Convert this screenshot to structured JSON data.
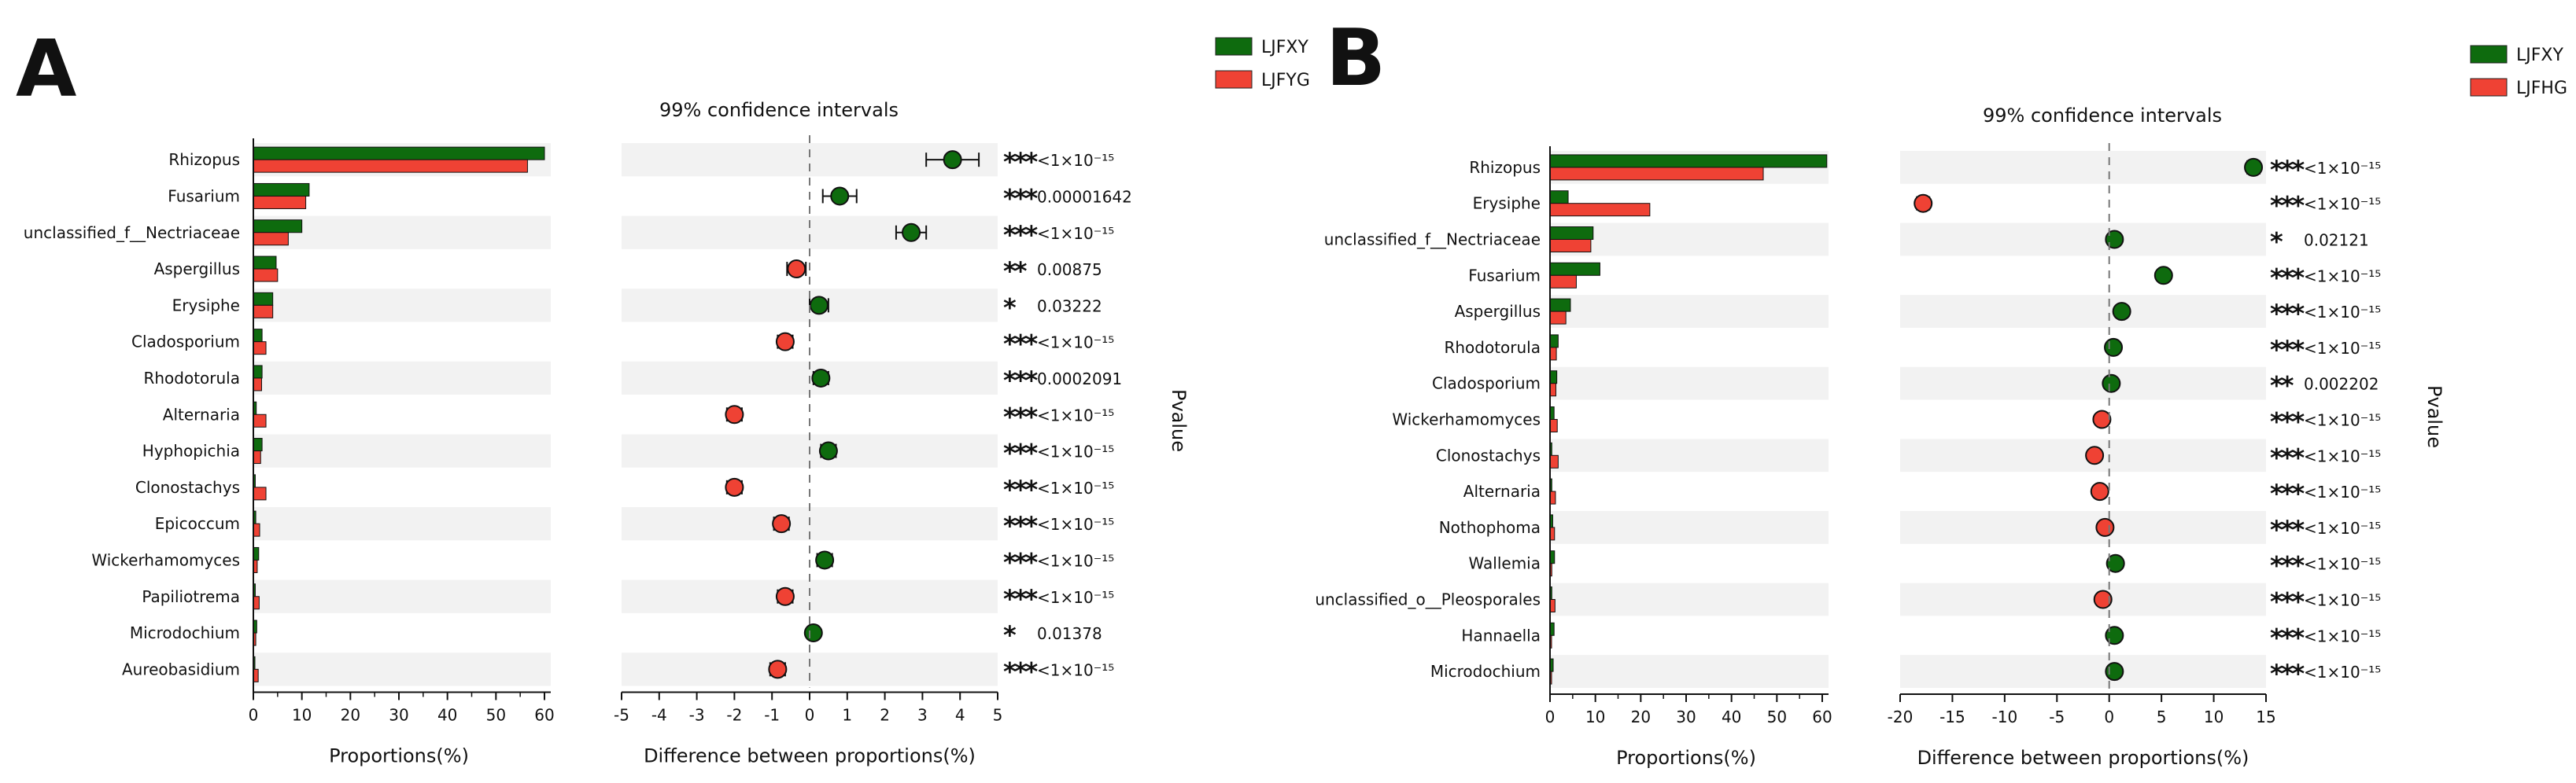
{
  "colors": {
    "green": "#0e6b0e",
    "red": "#ef4234",
    "stars": "#f08a80",
    "band": "#f2f2f2"
  },
  "chart_data": [
    {
      "type": "bar",
      "panel_letter": "A",
      "legend": [
        "LJFXY",
        "LJFYG"
      ],
      "ci_title": "99% confidence intervals",
      "xlabel_left": "Proportions(%)",
      "xlabel_right": "Difference between proportions(%)",
      "pvalue_label": "Pvalue",
      "prop_xlim": [
        0,
        60
      ],
      "prop_ticks": [
        0,
        10,
        20,
        30,
        40,
        50,
        60
      ],
      "diff_xlim": [
        -5,
        5
      ],
      "diff_ticks": [
        -5,
        -4,
        -3,
        -2,
        -1,
        0,
        1,
        2,
        3,
        4,
        5
      ],
      "categories": [
        "Rhizopus",
        "Fusarium",
        "unclassified_f__Nectriaceae",
        "Aspergillus",
        "Erysiphe",
        "Cladosporium",
        "Rhodotorula",
        "Alternaria",
        "Hyphopichia",
        "Clonostachys",
        "Epicoccum",
        "Wickerhamomyces",
        "Papiliotrema",
        "Microdochium",
        "Aureobasidium"
      ],
      "series": [
        {
          "name": "LJFXY",
          "values": [
            60,
            11.5,
            10,
            4.7,
            4.0,
            1.8,
            1.8,
            0.6,
            1.8,
            0.4,
            0.5,
            1.1,
            0.4,
            0.7,
            0.1
          ]
        },
        {
          "name": "LJFYG",
          "values": [
            56.5,
            10.8,
            7.2,
            5.0,
            4.0,
            2.6,
            1.7,
            2.6,
            1.5,
            2.6,
            1.3,
            0.8,
            1.2,
            0.5,
            1.0
          ]
        }
      ],
      "diff": [
        3.8,
        0.8,
        2.7,
        -0.35,
        0.25,
        -0.65,
        0.3,
        -2.0,
        0.5,
        -2.0,
        -0.75,
        0.4,
        -0.65,
        0.1,
        -0.85
      ],
      "ci_low": [
        3.1,
        0.35,
        2.3,
        -0.6,
        0.0,
        -0.85,
        0.1,
        -2.2,
        0.3,
        -2.2,
        -0.95,
        0.2,
        -0.85,
        -0.05,
        -1.05
      ],
      "ci_high": [
        4.5,
        1.25,
        3.1,
        -0.1,
        0.5,
        -0.45,
        0.5,
        -1.8,
        0.7,
        -1.8,
        -0.55,
        0.6,
        -0.45,
        0.25,
        -0.65
      ],
      "sig": [
        "***",
        "***",
        "***",
        "**",
        "*",
        "***",
        "***",
        "***",
        "***",
        "***",
        "***",
        "***",
        "***",
        "*",
        "***"
      ],
      "pvalues": [
        "<1×10⁻¹⁵",
        "0.00001642",
        "<1×10⁻¹⁵",
        "0.00875",
        "0.03222",
        "<1×10⁻¹⁵",
        "0.0002091",
        "<1×10⁻¹⁵",
        "<1×10⁻¹⁵",
        "<1×10⁻¹⁵",
        "<1×10⁻¹⁵",
        "<1×10⁻¹⁵",
        "<1×10⁻¹⁵",
        "0.01378",
        "<1×10⁻¹⁵"
      ]
    },
    {
      "type": "bar",
      "panel_letter": "B",
      "legend": [
        "LJFXY",
        "LJFHG"
      ],
      "ci_title": "99% confidence intervals",
      "xlabel_left": "Proportions(%)",
      "xlabel_right": "Difference between proportions(%)",
      "pvalue_label": "Pvalue",
      "prop_xlim": [
        0,
        60
      ],
      "prop_ticks": [
        0,
        10,
        20,
        30,
        40,
        50,
        60
      ],
      "diff_xlim": [
        -20,
        15
      ],
      "diff_ticks": [
        -20,
        -15,
        -10,
        -5,
        0,
        5,
        10,
        15
      ],
      "categories": [
        "Rhizopus",
        "Erysiphe",
        "unclassified_f__Nectriaceae",
        "Fusarium",
        "Aspergillus",
        "Rhodotorula",
        "Cladosporium",
        "Wickerhamomyces",
        "Clonostachys",
        "Alternaria",
        "Nothophoma",
        "Wallemia",
        "unclassified_o__Pleosporales",
        "Hannaella",
        "Microdochium"
      ],
      "series": [
        {
          "name": "LJFXY",
          "values": [
            61,
            4.0,
            9.5,
            11.0,
            4.5,
            1.8,
            1.5,
            0.9,
            0.4,
            0.4,
            0.6,
            1.0,
            0.4,
            0.9,
            0.7
          ]
        },
        {
          "name": "LJFHG",
          "values": [
            47,
            22,
            9.0,
            5.8,
            3.5,
            1.4,
            1.3,
            1.6,
            1.8,
            1.2,
            1.0,
            0.4,
            1.1,
            0.3,
            0.2
          ]
        }
      ],
      "diff": [
        13.8,
        -17.8,
        0.5,
        5.2,
        1.2,
        0.4,
        0.2,
        -0.7,
        -1.4,
        -0.9,
        -0.4,
        0.6,
        -0.6,
        0.5,
        0.5
      ],
      "ci_low": [
        13.2,
        -18.4,
        0.1,
        4.8,
        0.9,
        0.2,
        0.0,
        -0.9,
        -1.6,
        -1.1,
        -0.6,
        0.4,
        -0.8,
        0.3,
        0.3
      ],
      "ci_high": [
        14.4,
        -17.2,
        0.9,
        5.6,
        1.5,
        0.6,
        0.4,
        -0.5,
        -1.2,
        -0.7,
        -0.2,
        0.8,
        -0.4,
        0.7,
        0.7
      ],
      "sig": [
        "***",
        "***",
        "*",
        "***",
        "***",
        "***",
        "**",
        "***",
        "***",
        "***",
        "***",
        "***",
        "***",
        "***",
        "***"
      ],
      "pvalues": [
        "<1×10⁻¹⁵",
        "<1×10⁻¹⁵",
        "0.02121",
        "<1×10⁻¹⁵",
        "<1×10⁻¹⁵",
        "<1×10⁻¹⁵",
        "0.002202",
        "<1×10⁻¹⁵",
        "<1×10⁻¹⁵",
        "<1×10⁻¹⁵",
        "<1×10⁻¹⁵",
        "<1×10⁻¹⁵",
        "<1×10⁻¹⁵",
        "<1×10⁻¹⁵",
        "<1×10⁻¹⁵"
      ]
    }
  ]
}
